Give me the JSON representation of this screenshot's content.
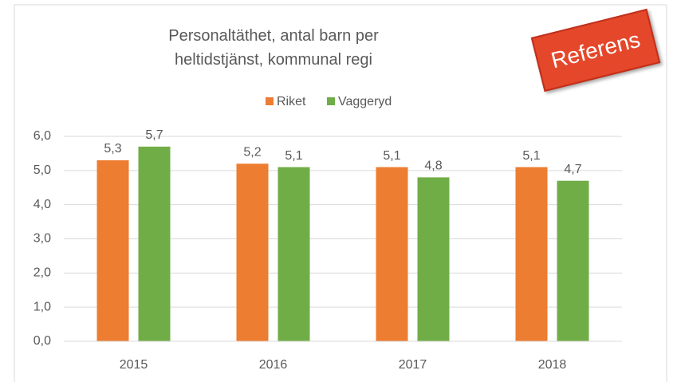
{
  "chart_data": {
    "type": "bar",
    "title": "Personaltäthet, antal barn per heltidstjänst, kommunal regi",
    "annotation": "Referens",
    "categories": [
      "2015",
      "2016",
      "2017",
      "2018"
    ],
    "series": [
      {
        "name": "Riket",
        "color": "#ed7d31",
        "values": [
          5.3,
          5.2,
          5.1,
          5.1
        ],
        "value_labels": [
          "5,3",
          "5,2",
          "5,1",
          "5,1"
        ]
      },
      {
        "name": "Vaggeryd",
        "color": "#70ad47",
        "values": [
          5.7,
          5.1,
          4.8,
          4.7
        ],
        "value_labels": [
          "5,7",
          "5,1",
          "4,8",
          "4,7"
        ]
      }
    ],
    "ylim": [
      0,
      6
    ],
    "yticks": [
      {
        "value": 0,
        "label": "0,0"
      },
      {
        "value": 1,
        "label": "1,0"
      },
      {
        "value": 2,
        "label": "2,0"
      },
      {
        "value": 3,
        "label": "3,0"
      },
      {
        "value": 4,
        "label": "4,0"
      },
      {
        "value": 5,
        "label": "5,0"
      },
      {
        "value": 6,
        "label": "6,0"
      }
    ],
    "grid": true,
    "legend": "top"
  }
}
